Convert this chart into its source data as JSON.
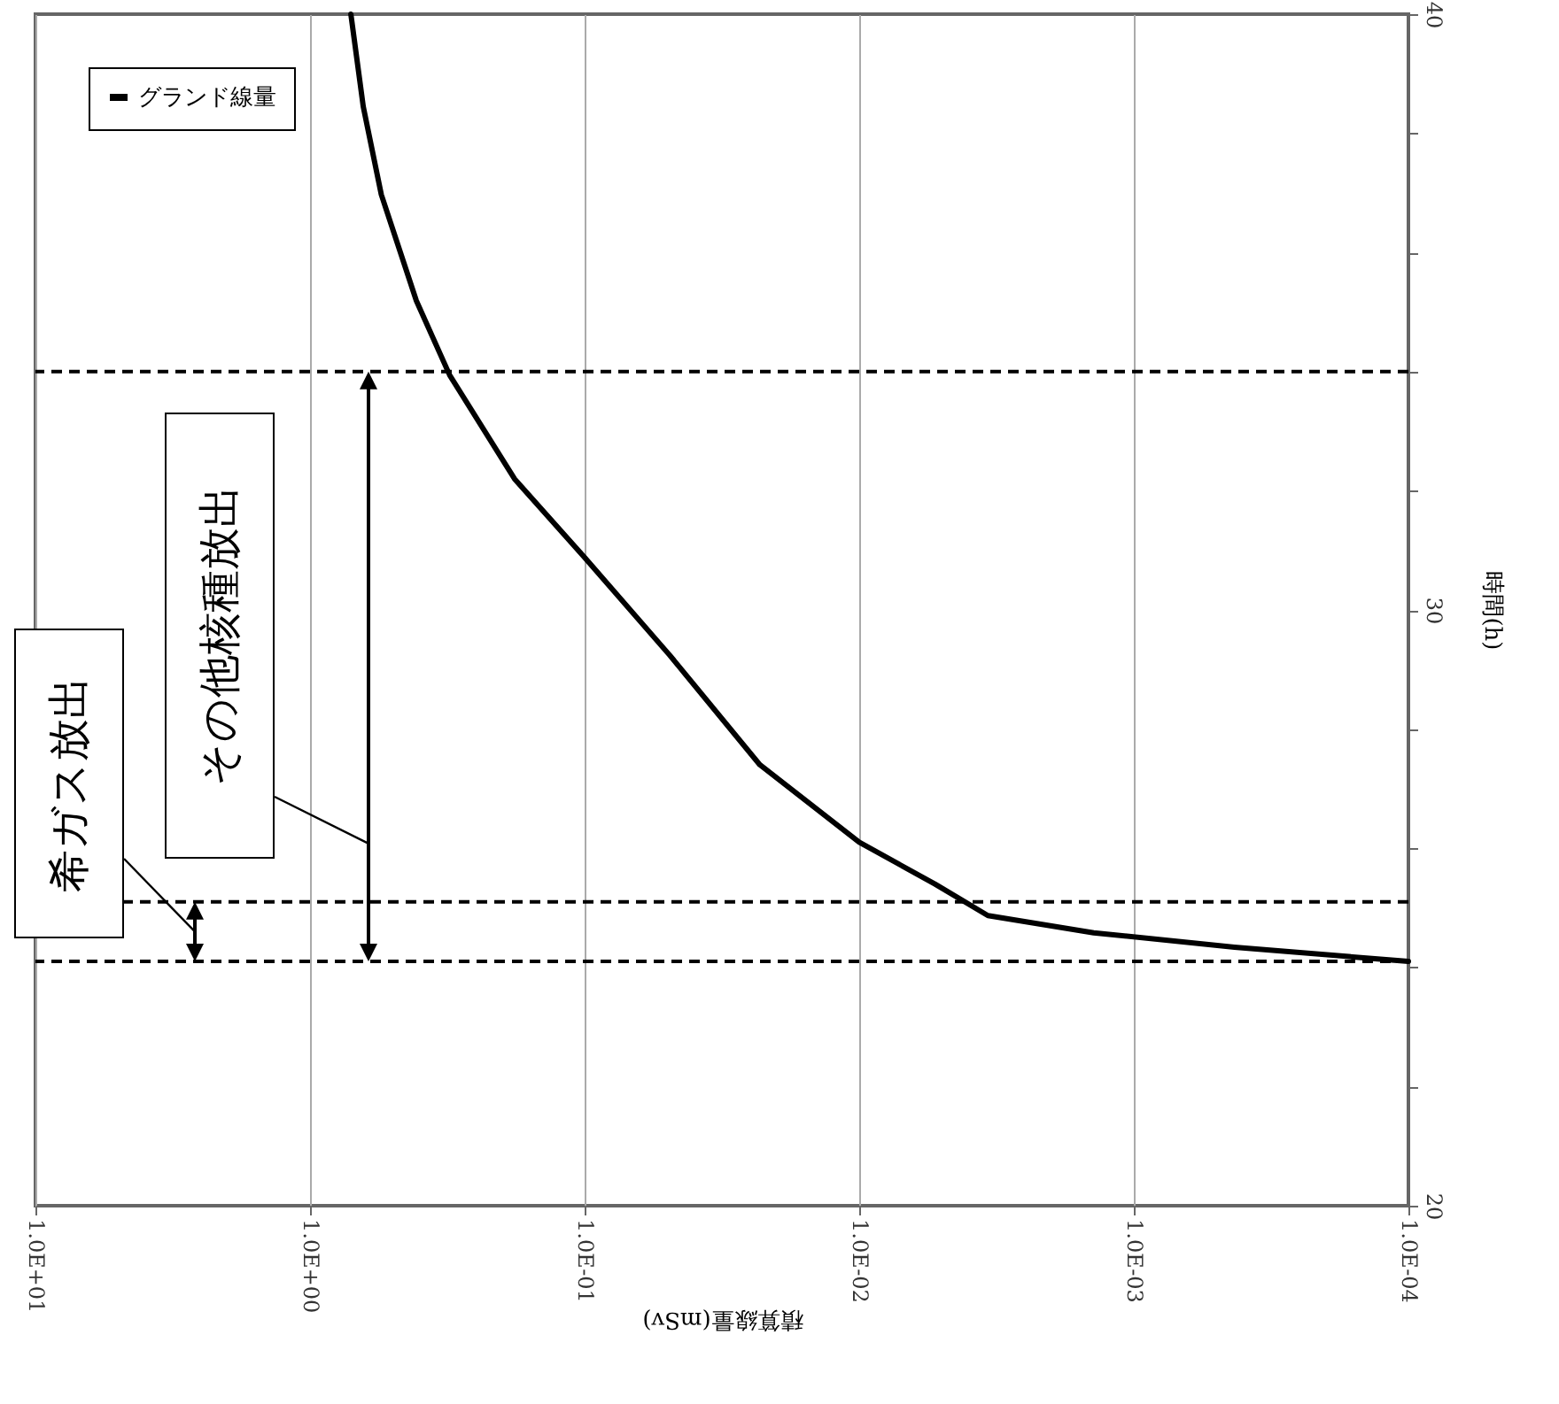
{
  "chart_data": {
    "type": "line",
    "xlabel": "積算線量(mSv)",
    "ylabel": "時間(h)",
    "log": "x",
    "xlim": [
      10,
      0.0001
    ],
    "xticks": [
      {
        "value": 10,
        "label": "1.0E+01"
      },
      {
        "value": 1,
        "label": "1.0E+00"
      },
      {
        "value": 0.1,
        "label": "1.0E-01"
      },
      {
        "value": 0.01,
        "label": "1.0E-02"
      },
      {
        "value": 0.001,
        "label": "1.0E-03"
      },
      {
        "value": 0.0001,
        "label": "1.0E-04"
      }
    ],
    "ylim": [
      20,
      40
    ],
    "yticks": [
      20,
      {
        "value": 22,
        "label": null
      },
      {
        "value": 24,
        "label": null
      },
      {
        "value": 26,
        "label": null
      },
      {
        "value": 28,
        "label": null
      },
      30,
      {
        "value": 32,
        "label": null
      },
      {
        "value": 34,
        "label": null
      },
      {
        "value": 36,
        "label": null
      },
      {
        "value": 38,
        "label": null
      },
      40
    ],
    "grid": "x",
    "legend": "top left",
    "series": [
      {
        "name": "グランド線量",
        "color": "#000000",
        "x": [
          0.0001,
          0.00043,
          0.0014,
          0.0034,
          0.0053,
          0.01,
          0.023,
          0.049,
          0.1,
          0.18,
          0.31,
          0.41,
          0.55,
          0.64,
          0.71
        ],
        "values": [
          24.1,
          24.34,
          24.58,
          24.87,
          25.4,
          26.1,
          27.4,
          29.24,
          30.88,
          32.2,
          33.94,
          35.19,
          36.97,
          38.45,
          40
        ]
      }
    ],
    "ref_lines": [
      {
        "axis": "y",
        "value": 24.1,
        "color": "#000000",
        "line_style": "dashed"
      },
      {
        "axis": "y",
        "value": 25.1,
        "color": "#000000",
        "line_style": "dashed"
      },
      {
        "axis": "y",
        "value": 34.0,
        "color": "#000000",
        "line_style": "dashed"
      }
    ],
    "annotations": [
      "希ガス放出",
      "その他核種放出"
    ]
  }
}
